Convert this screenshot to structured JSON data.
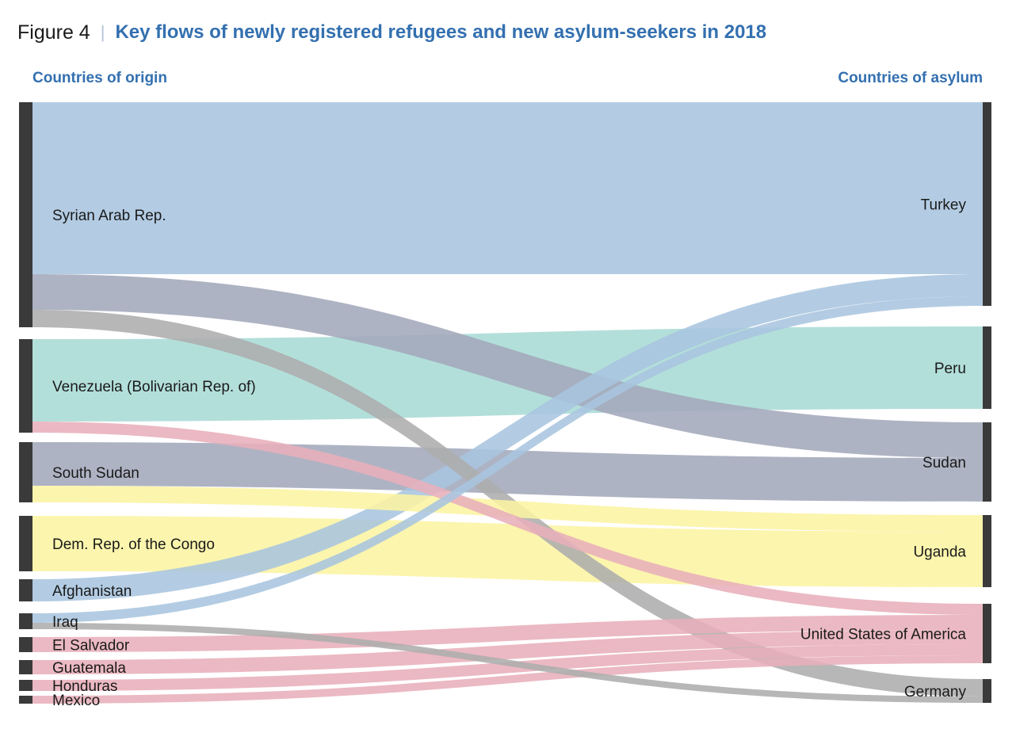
{
  "figure": {
    "label": "Figure 4",
    "separator": "|",
    "title": "Key flows of newly registered refugees and new asylum-seekers in 2018"
  },
  "headings": {
    "origin": "Countries of origin",
    "asylum": "Countries of asylum"
  },
  "chart_data": {
    "type": "sankey",
    "title": "Key flows of newly registered refugees and new asylum-seekers in 2018",
    "units": "relative flow size (estimated from band widths)",
    "colors": {
      "node": "#3a3a3a",
      "blue": "#a9c5df",
      "slate": "#a3a8bb",
      "grey": "#adadad",
      "teal": "#a9dbd5",
      "pink": "#e8afbb",
      "yellow": "#fcf4a3"
    },
    "origins": [
      {
        "id": "syria",
        "label": "Syrian Arab Rep."
      },
      {
        "id": "venezuela",
        "label": "Venezuela (Bolivarian Rep. of)"
      },
      {
        "id": "southsudan",
        "label": "South Sudan"
      },
      {
        "id": "drc",
        "label": "Dem. Rep. of the Congo"
      },
      {
        "id": "afghanistan",
        "label": "Afghanistan"
      },
      {
        "id": "iraq",
        "label": "Iraq"
      },
      {
        "id": "elsalvador",
        "label": "El Salvador"
      },
      {
        "id": "guatemala",
        "label": "Guatemala"
      },
      {
        "id": "honduras",
        "label": "Honduras"
      },
      {
        "id": "mexico",
        "label": "Mexico"
      }
    ],
    "destinations": [
      {
        "id": "turkey",
        "label": "Turkey"
      },
      {
        "id": "peru",
        "label": "Peru"
      },
      {
        "id": "sudan",
        "label": "Sudan"
      },
      {
        "id": "uganda",
        "label": "Uganda"
      },
      {
        "id": "usa",
        "label": "United States of America"
      },
      {
        "id": "germany",
        "label": "Germany"
      }
    ],
    "flows": [
      {
        "from": "syria",
        "to": "turkey",
        "value": 217,
        "color": "blue"
      },
      {
        "from": "syria",
        "to": "sudan",
        "value": 45,
        "color": "slate"
      },
      {
        "from": "syria",
        "to": "germany",
        "value": 22,
        "color": "grey"
      },
      {
        "from": "venezuela",
        "to": "peru",
        "value": 104,
        "color": "teal"
      },
      {
        "from": "venezuela",
        "to": "usa",
        "value": 14,
        "color": "pink"
      },
      {
        "from": "southsudan",
        "to": "sudan",
        "value": 55,
        "color": "slate"
      },
      {
        "from": "southsudan",
        "to": "uganda",
        "value": 21,
        "color": "yellow"
      },
      {
        "from": "drc",
        "to": "uganda",
        "value": 70,
        "color": "yellow"
      },
      {
        "from": "afghanistan",
        "to": "turkey",
        "value": 28,
        "color": "blue"
      },
      {
        "from": "iraq",
        "to": "turkey",
        "value": 12,
        "color": "blue"
      },
      {
        "from": "iraq",
        "to": "germany",
        "value": 8,
        "color": "grey"
      },
      {
        "from": "elsalvador",
        "to": "usa",
        "value": 19,
        "color": "pink"
      },
      {
        "from": "guatemala",
        "to": "usa",
        "value": 18,
        "color": "pink"
      },
      {
        "from": "honduras",
        "to": "usa",
        "value": 14,
        "color": "pink"
      },
      {
        "from": "mexico",
        "to": "usa",
        "value": 10,
        "color": "pink"
      }
    ]
  }
}
